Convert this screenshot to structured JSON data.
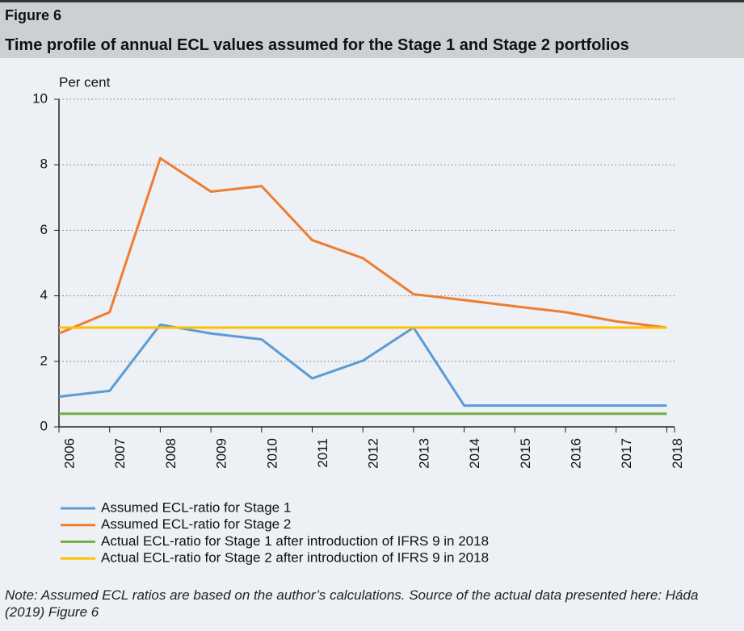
{
  "header": {
    "figure": "Figure 6",
    "title": "Time profile of annual ECL values assumed for the Stage 1 and Stage 2 portfolios"
  },
  "chart_data": {
    "type": "line",
    "y_label": "Per cent",
    "categories": [
      "2006",
      "2007",
      "2008",
      "2009",
      "2010",
      "2011",
      "2012",
      "2013",
      "2014",
      "2015",
      "2016",
      "2017",
      "2018"
    ],
    "series": [
      {
        "name": "Assumed ECL-ratio for Stage 1",
        "color": "#5b9bd5",
        "values": [
          0.92,
          1.1,
          3.12,
          2.85,
          2.67,
          1.48,
          2.02,
          3.03,
          0.65,
          0.65,
          0.65,
          0.65,
          0.65
        ]
      },
      {
        "name": "Assumed ECL-ratio for Stage 2",
        "color": "#ed7d31",
        "values": [
          2.85,
          3.5,
          8.2,
          7.18,
          7.35,
          5.7,
          5.15,
          4.05,
          3.87,
          3.68,
          3.5,
          3.22,
          3.03
        ]
      },
      {
        "name": "Actual ECL-ratio for Stage 1 after introduction of IFRS 9 in 2018",
        "color": "#70ad47",
        "values": [
          0.4,
          0.4,
          0.4,
          0.4,
          0.4,
          0.4,
          0.4,
          0.4,
          0.4,
          0.4,
          0.4,
          0.4,
          0.4
        ]
      },
      {
        "name": "Actual ECL-ratio for Stage 2 after introduction of IFRS 9 in 2018",
        "color": "#ffc000",
        "values": [
          3.03,
          3.03,
          3.03,
          3.03,
          3.03,
          3.03,
          3.03,
          3.03,
          3.03,
          3.03,
          3.03,
          3.03,
          3.03
        ]
      }
    ],
    "ylim": [
      0,
      10
    ],
    "yticks": [
      0,
      2,
      4,
      6,
      8,
      10
    ],
    "grid": true
  },
  "note": "Note: Assumed ECL ratios are based on the author’s calculations. Source of the actual data presented here: Háda (2019) Figure 6"
}
